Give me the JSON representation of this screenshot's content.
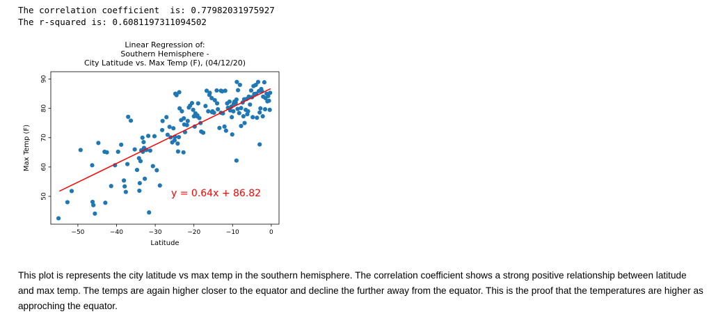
{
  "output": {
    "correlation_line": "The correlation coefficient  is: 0.77982031975927",
    "rsquared_line": "The r-squared is: 0.6081197311094502"
  },
  "chart_data": {
    "type": "scatter",
    "title_lines": [
      "Linear Regression of:",
      "Southern Hemisphere -",
      "City Latitude vs. Max Temp (F), (04/12/20)"
    ],
    "xlabel": "Latitude",
    "ylabel": "Max Temp (F)",
    "xlim": [
      -57,
      2
    ],
    "ylim": [
      40.5,
      92.5
    ],
    "xticks": [
      -50,
      -40,
      -30,
      -20,
      -10,
      0
    ],
    "xtick_labels": [
      "−50",
      "−40",
      "−30",
      "−20",
      "−10",
      "0"
    ],
    "yticks": [
      50,
      60,
      70,
      80,
      90
    ],
    "grid": false,
    "point_color": "#1f77b4",
    "line_color": "#ff0000",
    "regression": {
      "slope": 0.64,
      "intercept": 86.82,
      "x_range": [
        -54.8,
        -0.2
      ],
      "equation_label": "y = 0.64x + 86.82"
    },
    "x": [
      -55.0,
      -52.7,
      -51.6,
      -46.0,
      -46.2,
      -45.6,
      -42.9,
      -43.1,
      -42.5,
      -41.4,
      -39.6,
      -37.9,
      -37.6,
      -38.1,
      -37.2,
      -35.3,
      -34.2,
      -33.8,
      -34.7,
      -34.1,
      -34.0,
      -33.2,
      -32.7,
      -32.9,
      -31.8,
      -33.3,
      -33.0,
      -32.3,
      -31.6,
      -31.3,
      -30.2,
      -29.6,
      -28.8,
      -28.1,
      -27.1,
      -26.3,
      -25.3,
      -24.8,
      -24.5,
      -23.7,
      -23.3,
      -22.6,
      -23.9,
      -24.2,
      -22.7,
      -21.3,
      -20.5,
      -19.8,
      -19.1,
      -18.6,
      -18.1,
      -17.6,
      -16.7,
      -15.9,
      -15.2,
      -14.8,
      -14.1,
      -13.4,
      -12.7,
      -12.1,
      -11.7,
      -11.2,
      -10.6,
      -10.1,
      -9.5,
      -9.0,
      -8.6,
      -8.1,
      -7.4,
      -6.9,
      -6.4,
      -5.8,
      -5.2,
      -4.6,
      -3.9,
      -3.2,
      -2.6,
      -2.1,
      -1.5,
      -1.0,
      -0.6,
      -0.3,
      -19.6,
      -20.2,
      -21.0,
      -21.8,
      -22.5,
      -23.1,
      -23.8,
      -19.2,
      -18.3,
      -17.0,
      -16.3,
      -15.4,
      -14.6,
      -13.8,
      -13.0,
      -12.5,
      -11.9,
      -11.4,
      -10.8,
      -10.3,
      -9.7,
      -9.2,
      -8.7,
      -8.3,
      -7.8,
      -7.2,
      -6.6,
      -6.0,
      -5.5,
      -5.0,
      -4.4,
      -3.7,
      -3.0,
      -2.4,
      -1.8,
      -1.2,
      -0.8,
      -0.4,
      -26.0,
      -25.0,
      -22.3,
      -21.6,
      -20.0,
      -18.9,
      -16.0,
      -14.0,
      -13.0,
      -9.8,
      -8.9,
      -7.0,
      -6.2,
      -4.8,
      -4.0,
      -3.4,
      -2.8,
      -2.2,
      -1.6,
      -9.0,
      -7.8,
      -3.0,
      -10.2,
      -15.3,
      -28.2,
      -24.1,
      -25.6,
      -26.8,
      -24.9,
      -30.6,
      -33.6,
      -36.3,
      -37.0,
      -38.8,
      -40.4,
      -44.7,
      -46.3,
      -49.3
    ],
    "y": [
      42.5,
      48.0,
      51.8,
      47.0,
      48.1,
      44.1,
      47.8,
      65.2,
      65.0,
      53.5,
      65.2,
      53.4,
      51.5,
      55.4,
      61.0,
      66.0,
      63.0,
      62.0,
      59.0,
      51.9,
      54.5,
      65.2,
      56.0,
      66.5,
      70.6,
      70.0,
      68.5,
      65.8,
      44.5,
      65.6,
      70.5,
      58.9,
      53.7,
      75.7,
      77.0,
      73.7,
      73.2,
      85.0,
      84.5,
      80.0,
      76.0,
      76.6,
      70.2,
      68.0,
      65.0,
      80.3,
      81.8,
      73.8,
      77.6,
      76.7,
      72.1,
      71.7,
      86.0,
      85.3,
      79.0,
      78.5,
      86.1,
      73.3,
      85.8,
      73.8,
      72.4,
      80.2,
      79.3,
      71.1,
      82.3,
      83.0,
      86.2,
      88.0,
      82.0,
      75.0,
      83.2,
      84.0,
      86.1,
      87.6,
      85.0,
      85.9,
      86.6,
      84.0,
      83.5,
      82.4,
      82.6,
      85.3,
      78.3,
      79.5,
      80.9,
      74.3,
      74.5,
      79.0,
      85.5,
      77.3,
      75.0,
      80.8,
      79.0,
      83.5,
      82.8,
      79.7,
      78.5,
      78.3,
      86.0,
      81.7,
      82.3,
      80.6,
      81.6,
      81.9,
      79.8,
      78.4,
      80.1,
      77.3,
      79.5,
      79.0,
      81.3,
      83.8,
      84.9,
      76.8,
      78.6,
      85.8,
      88.9,
      85.0,
      84.2,
      79.5,
      70.1,
      69.1,
      71.9,
      75.7,
      77.3,
      81.7,
      84.6,
      81.7,
      86.0,
      79.0,
      89.0,
      83.1,
      78.0,
      77.0,
      88.0,
      89.0,
      80.0,
      77.3,
      79.7,
      62.2,
      74.0,
      67.7,
      77.0,
      78.7,
      72.6,
      65.3,
      68.4,
      71.0,
      70.3,
      60.3,
      65.7,
      75.8,
      77.1,
      67.6,
      60.6,
      68.2,
      60.6,
      65.8
    ]
  },
  "annotation": {
    "color": "#ff0000"
  },
  "markdown": {
    "paragraph": "This plot is represents the city latitude vs max temp in the southern hemisphere. The correlation coefficient shows a strong positive relationship between latitude and max temp. The temps are again higher closer to the equator and decline the further away from the equator. This is the proof that the temperatures are higher as approching the equator."
  }
}
